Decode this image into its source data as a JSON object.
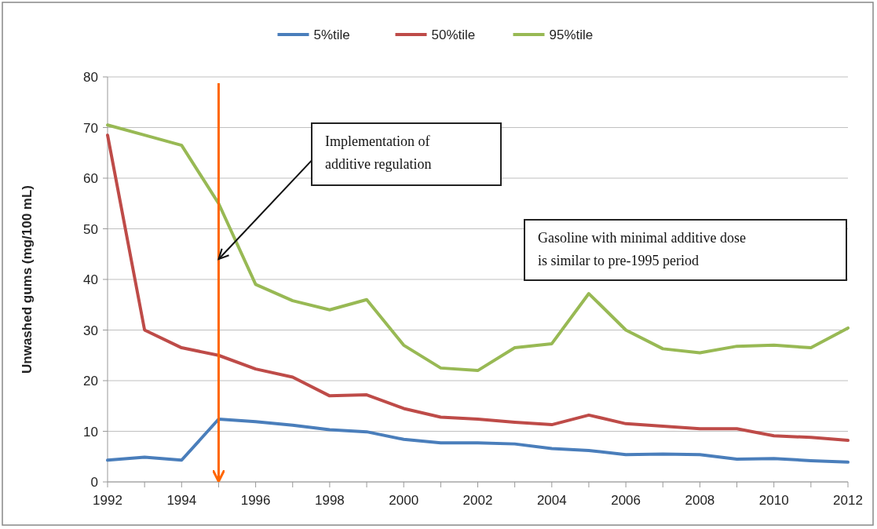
{
  "chart_data": {
    "type": "line",
    "ylabel": "Unwashed gums (mg/100 mL)",
    "x": [
      1992,
      1993,
      1994,
      1995,
      1996,
      1997,
      1998,
      1999,
      2000,
      2001,
      2002,
      2003,
      2004,
      2005,
      2006,
      2007,
      2008,
      2009,
      2010,
      2011,
      2012
    ],
    "series": [
      {
        "name": "5%tile",
        "color": "#4a7ebb",
        "values": [
          4.3,
          4.9,
          4.3,
          12.4,
          11.9,
          11.2,
          10.3,
          9.9,
          8.4,
          7.7,
          7.7,
          7.5,
          6.6,
          6.2,
          5.4,
          5.5,
          5.4,
          4.5,
          4.6,
          4.2,
          3.9
        ]
      },
      {
        "name": "50%tile",
        "color": "#be4b48",
        "values": [
          68.5,
          30,
          26.5,
          25,
          22.3,
          20.7,
          17,
          17.2,
          14.5,
          12.8,
          12.4,
          11.8,
          11.3,
          13.2,
          11.5,
          11,
          10.5,
          10.5,
          9.1,
          8.8,
          8.2
        ]
      },
      {
        "name": "95%tile",
        "color": "#98b954",
        "values": [
          70.5,
          68.5,
          66.5,
          55,
          39,
          35.8,
          34,
          36,
          27,
          22.5,
          22,
          26.5,
          27.3,
          37.2,
          30,
          26.3,
          25.5,
          26.8,
          27,
          26.5,
          30.4
        ]
      }
    ],
    "xlim": [
      1992,
      2012
    ],
    "xticks": [
      1992,
      {
        "value": 1993,
        "label": null
      },
      1994,
      {
        "value": 1995,
        "label": null
      },
      1996,
      {
        "value": 1997,
        "label": null
      },
      1998,
      {
        "value": 1999,
        "label": null
      },
      2000,
      {
        "value": 2001,
        "label": null
      },
      2002,
      {
        "value": 2003,
        "label": null
      },
      2004,
      {
        "value": 2005,
        "label": null
      },
      2006,
      {
        "value": 2007,
        "label": null
      },
      2008,
      {
        "value": 2009,
        "label": null
      },
      2010,
      {
        "value": 2011,
        "label": null
      },
      2012
    ],
    "ylim": [
      0,
      80
    ],
    "yticks": [
      0,
      10,
      20,
      30,
      40,
      50,
      60,
      70,
      80
    ],
    "ref_lines": [
      {
        "axis": "x",
        "value": 1995,
        "color": "#ff6600"
      }
    ],
    "annotations": [
      {
        "text": "Implementation of additive regulation",
        "x": 1995,
        "y": 44
      },
      "Gasoline with minimal additive dose is similar to pre-1995 period"
    ],
    "grid": "y",
    "legend": "top",
    "line_style": "solid",
    "marker": "none"
  }
}
